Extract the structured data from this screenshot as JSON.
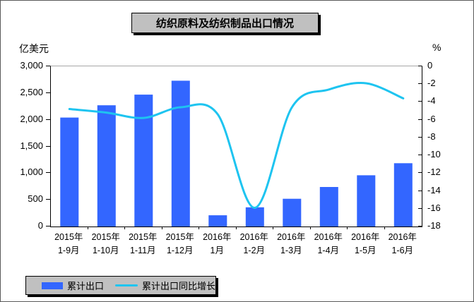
{
  "title": "纺织原料及纺织制品出口情况",
  "left_axis": {
    "unit": "亿美元",
    "tick_labels": [
      "3,000",
      "2,500",
      "2,000",
      "1,500",
      "1,000",
      "500",
      "0"
    ]
  },
  "right_axis": {
    "unit": "%",
    "tick_labels": [
      "0",
      "-2",
      "-4",
      "-6",
      "-8",
      "-10",
      "-12",
      "-14",
      "-16",
      "-18"
    ]
  },
  "legend": {
    "items": [
      {
        "label": "累计出口",
        "type": "bar",
        "color": "#3366FF"
      },
      {
        "label": "累计出口同比增长",
        "type": "line",
        "color": "#1EC4F0"
      }
    ]
  },
  "colors": {
    "bar": "#3366FF",
    "line": "#1EC4F0",
    "box_bg": "#C0C0C0",
    "box_shadow": "#000000",
    "axis": "#000000",
    "plot_top_border": "#A6A6A6"
  },
  "chart_data": {
    "type": "bar+line",
    "title": "纺织原料及纺织制品出口情况",
    "categories": [
      "2015年1-9月",
      "2015年1-10月",
      "2015年1-11月",
      "2015年1-12月",
      "2016年1月",
      "2016年1-2月",
      "2016年1-3月",
      "2016年1-4月",
      "2016年1-5月",
      "2016年1-6月"
    ],
    "category_lines": [
      [
        "2015年",
        "1-9月"
      ],
      [
        "2015年",
        "1-10月"
      ],
      [
        "2015年",
        "1-11月"
      ],
      [
        "2015年",
        "1-12月"
      ],
      [
        "2016年",
        "1月"
      ],
      [
        "2016年",
        "1-2月"
      ],
      [
        "2016年",
        "1-3月"
      ],
      [
        "2016年",
        "1-4月"
      ],
      [
        "2016年",
        "1-5月"
      ],
      [
        "2016年",
        "1-6月"
      ]
    ],
    "series": [
      {
        "name": "累计出口",
        "type": "bar",
        "axis": "left",
        "unit": "亿美元",
        "color": "#3366FF",
        "values": [
          2040,
          2270,
          2470,
          2730,
          210,
          360,
          520,
          740,
          960,
          1185
        ]
      },
      {
        "name": "累计出口同比增长",
        "type": "line",
        "axis": "right",
        "unit": "%",
        "color": "#1EC4F0",
        "smooth": true,
        "values": [
          -4.8,
          -5.2,
          -5.8,
          -4.6,
          -5.4,
          -15.9,
          -4.6,
          -2.6,
          -1.9,
          -3.6
        ]
      }
    ],
    "left_ylim": [
      0,
      3000
    ],
    "right_ylim": [
      -18,
      0
    ],
    "grid": false,
    "legend_position": "bottom-left"
  }
}
